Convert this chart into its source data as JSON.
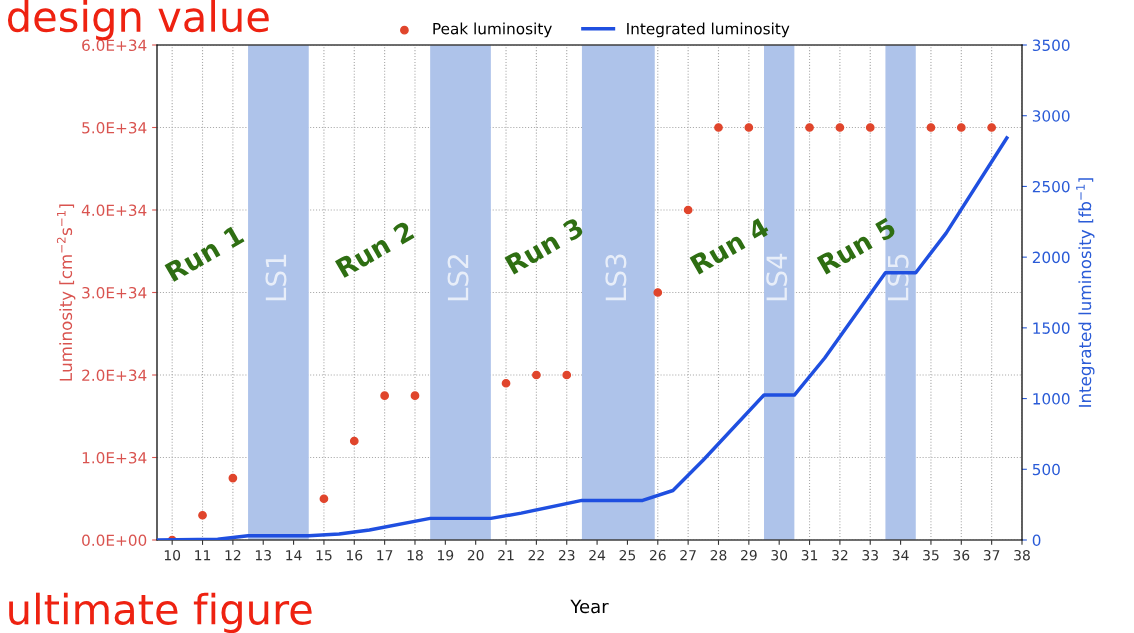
{
  "chart_data": {
    "type": "scatter",
    "xlabel": "Year",
    "ylabel": "Luminosity [cm$^{−2}$s$^{−1}$]",
    "y2label": "Integrated luminosity [fb$^{−1}$]",
    "series": [
      {
        "name": "Peak luminosity",
        "marker": "circle",
        "color": "#e0452c",
        "x": [
          10,
          11,
          12,
          15,
          16,
          17,
          18,
          21,
          22,
          23,
          26,
          27,
          28,
          29,
          31,
          32,
          33,
          35,
          36,
          37
        ],
        "values": [
          0,
          3e+33,
          7.5e+33,
          5e+33,
          1.2e+34,
          1.75e+34,
          1.75e+34,
          1.9e+34,
          2e+34,
          2e+34,
          3e+34,
          4e+34,
          5e+34,
          5e+34,
          5e+34,
          5e+34,
          5e+34,
          5e+34,
          5e+34,
          5e+34
        ]
      },
      {
        "name": "Integrated luminosity",
        "type": "line",
        "axis": "y2",
        "color": "#1f4fe0",
        "x": [
          9.5,
          11.5,
          12.5,
          14.5,
          15.5,
          16.5,
          18.5,
          20.5,
          21.5,
          23.5,
          25.5,
          26.5,
          27.5,
          29.5,
          30.5,
          31.5,
          33.5,
          34.5,
          35.5,
          37.5
        ],
        "values": [
          0,
          5,
          30,
          30,
          42,
          71,
          153,
          153,
          190,
          280,
          280,
          350,
          566,
          1025,
          1025,
          1287,
          1890,
          1890,
          2170,
          2843
        ]
      }
    ],
    "xlim": [
      9.5,
      38
    ],
    "xticks": [
      10,
      11,
      12,
      13,
      14,
      15,
      16,
      17,
      18,
      19,
      20,
      21,
      22,
      23,
      24,
      25,
      26,
      27,
      28,
      29,
      30,
      31,
      32,
      33,
      34,
      35,
      36,
      37,
      38
    ],
    "ylim": [
      0,
      6e+34
    ],
    "yticks": [
      {
        "value": 0,
        "label": "0.0E+00"
      },
      {
        "value": 1e+34,
        "label": "1.0E+34"
      },
      {
        "value": 2e+34,
        "label": "2.0E+34"
      },
      {
        "value": 3e+34,
        "label": "3.0E+34"
      },
      {
        "value": 4e+34,
        "label": "4.0E+34"
      },
      {
        "value": 5e+34,
        "label": "5.0E+34"
      },
      {
        "value": 6e+34,
        "label": "6.0E+34"
      }
    ],
    "y2lim": [
      0,
      3500
    ],
    "y2ticks": [
      0,
      500,
      1000,
      1500,
      2000,
      2500,
      3000,
      3500
    ],
    "bands": [
      {
        "axis": "x",
        "from": 12.5,
        "to": 14.5,
        "label": "LS1",
        "color": "#aec3ea"
      },
      {
        "axis": "x",
        "from": 18.5,
        "to": 20.5,
        "label": "LS2",
        "color": "#aec3ea"
      },
      {
        "axis": "x",
        "from": 23.5,
        "to": 25.9,
        "label": "LS3",
        "color": "#aec3ea"
      },
      {
        "axis": "x",
        "from": 29.5,
        "to": 30.5,
        "label": "LS4",
        "color": "#aec3ea"
      },
      {
        "axis": "x",
        "from": 33.5,
        "to": 34.5,
        "label": "LS5",
        "color": "#aec3ea"
      }
    ],
    "annotations": [
      "Run 1",
      "Run 2",
      "Run 3",
      "Run 4",
      "Run 5",
      "design value",
      "ultimate figure"
    ],
    "grid": true,
    "legend": "top",
    "line_style": "solid"
  }
}
